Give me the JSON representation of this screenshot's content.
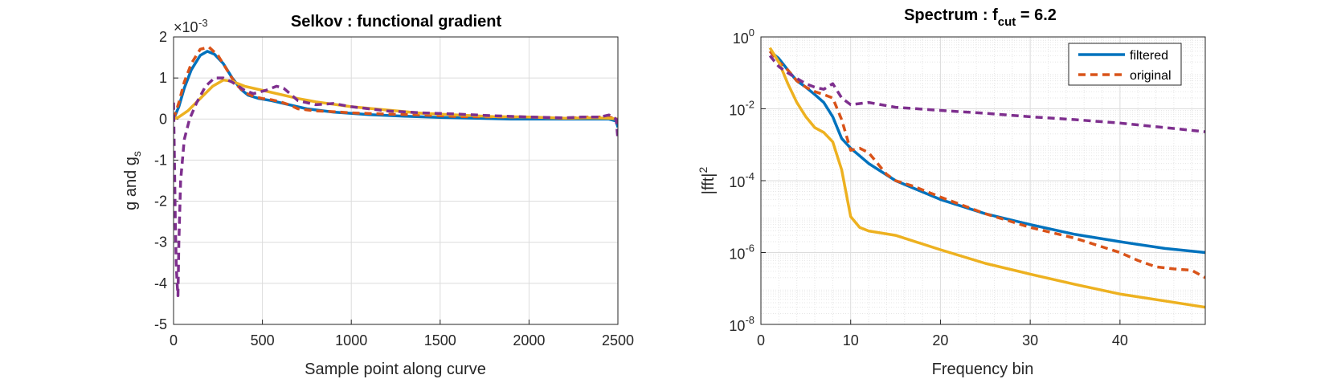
{
  "chart_data": [
    {
      "type": "line",
      "title": "Selkov : functional gradient",
      "xlabel": "Sample point along curve",
      "ylabel_main": "g and g",
      "ylabel_sub": "s",
      "exponent_prefix": "×10",
      "exponent": "-3",
      "xlim": [
        0,
        2500
      ],
      "ylim": [
        -5,
        2
      ],
      "xticks": [
        "0",
        "500",
        "1000",
        "1500",
        "2000",
        "2500"
      ],
      "xtick_values": [
        0,
        500,
        1000,
        1500,
        2000,
        2500
      ],
      "yticks": [
        "-5",
        "-4",
        "-3",
        "-2",
        "-1",
        "0",
        "1",
        "2"
      ],
      "ytick_values": [
        -5,
        -4,
        -3,
        -2,
        -1,
        0,
        1,
        2
      ],
      "grid": true,
      "series": [
        {
          "color": "#0072BD",
          "style": "solid",
          "x": [
            0,
            30,
            60,
            100,
            150,
            190,
            230,
            280,
            330,
            380,
            420,
            480,
            550,
            650,
            750,
            900,
            1100,
            1300,
            1500,
            1700,
            1900,
            2100,
            2300,
            2450,
            2490,
            2500
          ],
          "y": [
            0.0,
            0.3,
            0.75,
            1.2,
            1.55,
            1.65,
            1.58,
            1.35,
            1.0,
            0.72,
            0.58,
            0.5,
            0.45,
            0.35,
            0.25,
            0.17,
            0.11,
            0.07,
            0.04,
            0.02,
            0.0,
            0.0,
            0.0,
            0.0,
            -0.05,
            -0.2
          ]
        },
        {
          "color": "#D95319",
          "style": "dashed",
          "x": [
            0,
            30,
            60,
            100,
            150,
            200,
            250,
            300,
            350,
            400,
            450,
            500,
            550,
            600,
            650,
            700,
            800,
            900,
            1000,
            1200,
            1400,
            1600,
            1800,
            2000,
            2200,
            2350,
            2450,
            2490
          ],
          "y": [
            0.0,
            0.4,
            0.9,
            1.35,
            1.7,
            1.75,
            1.55,
            1.2,
            0.85,
            0.65,
            0.55,
            0.5,
            0.47,
            0.42,
            0.35,
            0.25,
            0.2,
            0.18,
            0.15,
            0.12,
            0.1,
            0.06,
            0.05,
            0.05,
            0.02,
            0.05,
            0.05,
            0.0
          ]
        },
        {
          "color": "#EDB120",
          "style": "solid",
          "x": [
            0,
            30,
            80,
            150,
            220,
            280,
            330,
            400,
            500,
            600,
            700,
            800,
            1000,
            1200,
            1400,
            1600,
            1800,
            2000,
            2200,
            2350,
            2450,
            2500
          ],
          "y": [
            0.0,
            0.05,
            0.2,
            0.5,
            0.8,
            0.95,
            0.92,
            0.8,
            0.7,
            0.6,
            0.5,
            0.42,
            0.3,
            0.22,
            0.14,
            0.1,
            0.06,
            0.05,
            0.02,
            0.03,
            0.02,
            0.0
          ]
        },
        {
          "color": "#7E2F8E",
          "style": "dashed",
          "x": [
            0,
            5,
            10,
            15,
            20,
            25,
            30,
            40,
            60,
            90,
            130,
            180,
            230,
            280,
            330,
            400,
            450,
            520,
            580,
            620,
            660,
            700,
            800,
            900,
            1000,
            1200,
            1400,
            1600,
            1800,
            2000,
            2200,
            2300,
            2400,
            2450,
            2490,
            2500
          ],
          "y": [
            0.4,
            -1.0,
            -2.5,
            -3.5,
            -4.0,
            -4.3,
            -3.0,
            -1.5,
            -0.5,
            0.0,
            0.4,
            0.8,
            1.0,
            1.0,
            0.9,
            0.7,
            0.62,
            0.7,
            0.8,
            0.75,
            0.6,
            0.45,
            0.35,
            0.38,
            0.3,
            0.2,
            0.15,
            0.12,
            0.08,
            0.05,
            0.03,
            0.05,
            0.05,
            0.1,
            0.0,
            -0.5
          ]
        }
      ]
    },
    {
      "type": "line",
      "title_main": "Spectrum : f",
      "title_sub": "cut",
      "title_tail": " = 6.2",
      "xlabel": "Frequency bin",
      "ylabel_main": "|fft|",
      "ylabel_sup": "2",
      "yscale": "log",
      "xlim": [
        0,
        49.5
      ],
      "ylim": [
        1e-08,
        1
      ],
      "xticks": [
        "0",
        "10",
        "20",
        "30",
        "40"
      ],
      "xtick_values": [
        0,
        10,
        20,
        30,
        40
      ],
      "yticks": [
        {
          "base": "10",
          "exp": "-8"
        },
        {
          "base": "10",
          "exp": "-6"
        },
        {
          "base": "10",
          "exp": "-4"
        },
        {
          "base": "10",
          "exp": "-2"
        },
        {
          "base": "10",
          "exp": "0"
        }
      ],
      "ytick_values": [
        1e-08,
        1e-06,
        0.0001,
        0.01,
        1
      ],
      "grid": true,
      "minor_grid": true,
      "legend": {
        "placement": "top-right",
        "entries": [
          {
            "label": "filtered",
            "color": "#0072BD",
            "style": "solid"
          },
          {
            "label": "original",
            "color": "#D95319",
            "style": "dashed"
          }
        ]
      },
      "series": [
        {
          "name": "filtered",
          "color": "#0072BD",
          "style": "solid",
          "x": [
            1,
            2,
            3,
            4,
            5,
            6,
            7,
            8,
            9,
            10,
            12,
            15,
            20,
            25,
            30,
            35,
            40,
            45,
            49.5
          ],
          "y": [
            0.4,
            0.25,
            0.12,
            0.06,
            0.04,
            0.025,
            0.015,
            0.006,
            0.0015,
            0.0008,
            0.0003,
            0.0001,
            3e-05,
            1.2e-05,
            6e-06,
            3.2e-06,
            2e-06,
            1.3e-06,
            1e-06
          ]
        },
        {
          "name": "original",
          "color": "#D95319",
          "style": "dashed",
          "x": [
            1,
            2,
            3,
            4,
            5,
            6,
            7,
            8,
            9,
            10,
            11,
            12,
            13,
            14,
            15,
            17,
            20,
            25,
            30,
            35,
            40,
            42,
            44,
            46,
            48,
            49.5
          ],
          "y": [
            0.4,
            0.2,
            0.12,
            0.06,
            0.04,
            0.03,
            0.025,
            0.02,
            0.005,
            0.0007,
            0.0008,
            0.0006,
            0.0003,
            0.00015,
            0.0001,
            7e-05,
            3.5e-05,
            1.2e-05,
            5e-06,
            2.5e-06,
            1e-06,
            6e-07,
            4e-07,
            3.5e-07,
            3.2e-07,
            2e-07
          ]
        },
        {
          "color": "#EDB120",
          "style": "solid",
          "x": [
            1,
            2,
            3,
            4,
            5,
            6,
            7,
            8,
            9,
            10,
            11,
            12,
            15,
            20,
            25,
            30,
            35,
            40,
            45,
            49.5
          ],
          "y": [
            0.5,
            0.2,
            0.05,
            0.015,
            0.006,
            0.003,
            0.0022,
            0.0012,
            0.0002,
            1e-05,
            5e-06,
            4e-06,
            3e-06,
            1.2e-06,
            5e-07,
            2.5e-07,
            1.3e-07,
            7e-08,
            4.5e-08,
            3e-08
          ]
        },
        {
          "color": "#7E2F8E",
          "style": "dashed",
          "x": [
            1,
            2,
            3,
            4,
            5,
            6,
            7,
            8,
            9,
            10,
            11,
            12,
            15,
            20,
            25,
            30,
            35,
            40,
            45,
            49.5
          ],
          "y": [
            0.3,
            0.15,
            0.1,
            0.07,
            0.05,
            0.04,
            0.035,
            0.05,
            0.02,
            0.013,
            0.014,
            0.015,
            0.011,
            0.009,
            0.0075,
            0.006,
            0.005,
            0.004,
            0.003,
            0.0023
          ]
        }
      ]
    }
  ]
}
